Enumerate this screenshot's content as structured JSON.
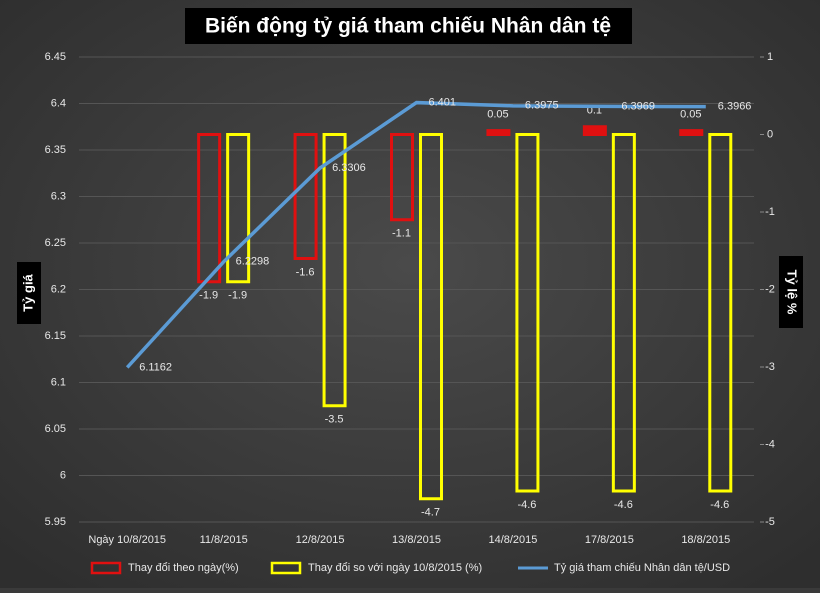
{
  "chart_data": {
    "type": "bar",
    "title": "Biến động tỷ giá tham chiếu Nhân dân tệ",
    "y_label": "Tỷ giá",
    "y2_label": "Tỷ lệ %",
    "categories": [
      "Ngày 10/8/2015",
      "11/8/2015",
      "12/8/2015",
      "13/8/2015",
      "14/8/2015",
      "17/8/2015",
      "18/8/2015"
    ],
    "series": [
      {
        "name": "Thay đổi theo ngày(%)",
        "type": "bar",
        "axis": "y2",
        "color": "#e01010",
        "values": [
          null,
          -1.9,
          -1.6,
          -1.1,
          0.05,
          0.1,
          0.05
        ]
      },
      {
        "name": "Thay đổi so với ngày 10/8/2015 (%)",
        "type": "bar",
        "axis": "y2",
        "color": "#ffff00",
        "values": [
          null,
          -1.9,
          -3.5,
          -4.7,
          -4.6,
          -4.6,
          -4.6
        ]
      },
      {
        "name": "Tỷ giá tham chiếu Nhân dân tệ/USD",
        "type": "line",
        "axis": "y",
        "color": "#5b9bd5",
        "values": [
          6.1162,
          6.2298,
          6.3306,
          6.401,
          6.3975,
          6.3969,
          6.3966
        ]
      }
    ],
    "ylim": [
      5.95,
      6.45
    ],
    "yticks": [
      5.95,
      6,
      6.05,
      6.1,
      6.15,
      6.2,
      6.25,
      6.3,
      6.35,
      6.4,
      6.45
    ],
    "y2lim": [
      -5,
      1
    ],
    "y2ticks": [
      -5,
      -4,
      -3,
      -2,
      -1,
      0,
      1
    ],
    "grid": true
  }
}
